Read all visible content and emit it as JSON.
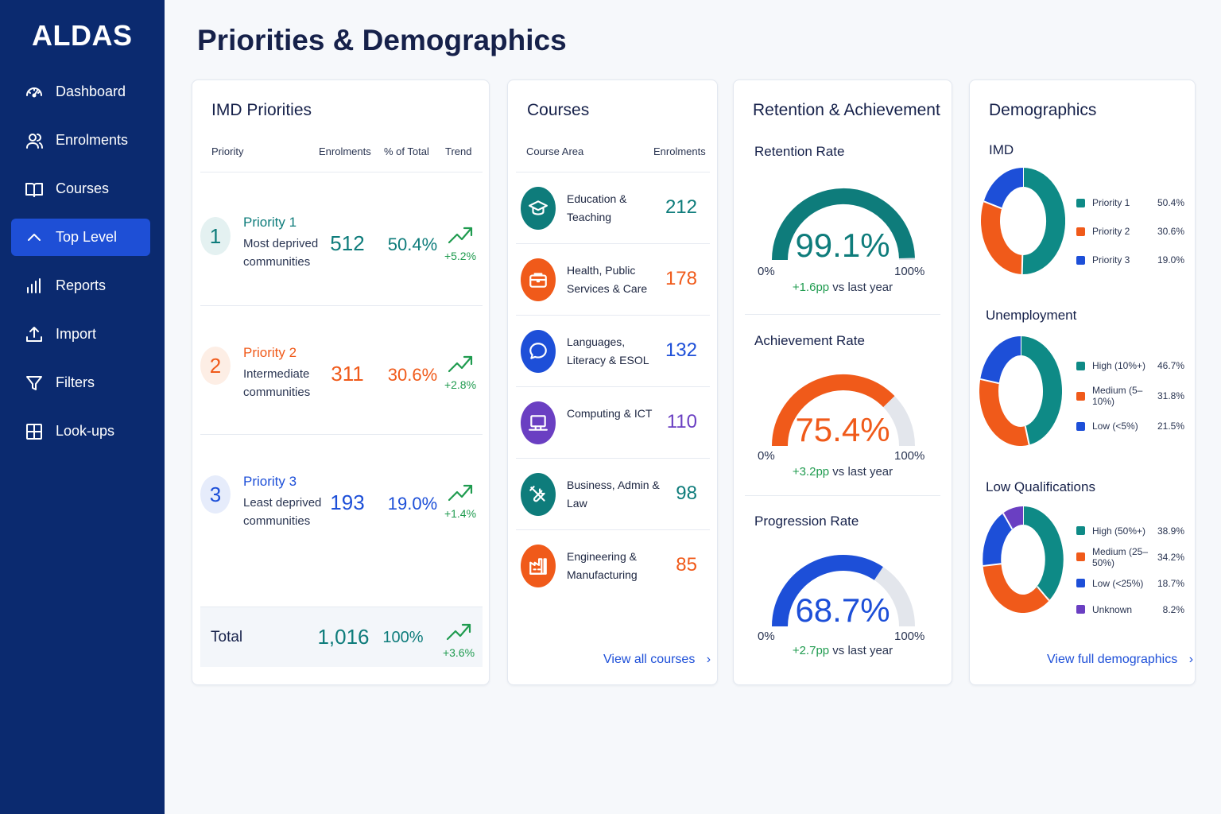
{
  "app": {
    "brand": "ALDAS",
    "page_title": "Priorities & Demographics"
  },
  "sidebar": {
    "items": [
      {
        "label": "Dashboard",
        "icon": "gauge-icon"
      },
      {
        "label": "Enrolments",
        "icon": "users-icon"
      },
      {
        "label": "Courses",
        "icon": "book-icon"
      },
      {
        "label": "Top Level",
        "icon": "chevron-up-icon",
        "active": true
      },
      {
        "label": "Reports",
        "icon": "bar-chart-icon"
      },
      {
        "label": "Import",
        "icon": "upload-icon"
      },
      {
        "label": "Filters",
        "icon": "filter-icon"
      },
      {
        "label": "Look-ups",
        "icon": "grid-icon"
      }
    ]
  },
  "imd": {
    "title": "IMD Priorities",
    "headers": {
      "priority": "Priority",
      "enrolments": "Enrolments",
      "pct": "% of Total",
      "trend": "Trend"
    },
    "rows": [
      {
        "num": "1",
        "name": "Priority 1",
        "desc": "Most deprived communities",
        "enrolments": "512",
        "pct": "50.4%",
        "trend": "+5.2%",
        "color": "#0e7c7b"
      },
      {
        "num": "2",
        "name": "Priority 2",
        "desc": "Intermediate communities",
        "enrolments": "311",
        "pct": "30.6%",
        "trend": "+2.8%",
        "color": "#f05a1a"
      },
      {
        "num": "3",
        "name": "Priority 3",
        "desc": "Least deprived communities",
        "enrolments": "193",
        "pct": "19.0%",
        "trend": "+1.4%",
        "color": "#1d4fd8"
      }
    ],
    "total": {
      "label": "Total",
      "enrolments": "1,016",
      "pct": "100%",
      "trend": "+3.6%"
    }
  },
  "courses": {
    "title": "Courses",
    "headers": {
      "area": "Course Area",
      "enrolments": "Enrolments"
    },
    "rows": [
      {
        "name": "Education & Teaching",
        "value": "212",
        "color": "#0e7c7b",
        "icon": "graduation-cap-icon"
      },
      {
        "name": "Health, Public Services & Care",
        "value": "178",
        "color": "#f05a1a",
        "icon": "briefcase-icon"
      },
      {
        "name": "Languages, Literacy & ESOL",
        "value": "132",
        "color": "#1d4fd8",
        "icon": "speech-bubble-icon"
      },
      {
        "name": "Computing & ICT",
        "value": "110",
        "color": "#6a3fc2",
        "icon": "computer-icon"
      },
      {
        "name": "Business, Admin & Law",
        "value": "98",
        "color": "#0e7c7b",
        "icon": "tools-icon"
      },
      {
        "name": "Engineering & Manufacturing",
        "value": "85",
        "color": "#f05a1a",
        "icon": "factory-icon"
      }
    ],
    "link": "View all courses"
  },
  "retention": {
    "title": "Retention & Achievement",
    "gauges": [
      {
        "title": "Retention Rate",
        "value": "99.1%",
        "fraction": 0.991,
        "min": "0%",
        "max": "100%",
        "delta": "+1.6pp",
        "suffix": " vs last year",
        "color": "#0e7c7b"
      },
      {
        "title": "Achievement Rate",
        "value": "75.4%",
        "fraction": 0.754,
        "min": "0%",
        "max": "100%",
        "delta": "+3.2pp",
        "suffix": " vs last year",
        "color": "#f05a1a"
      },
      {
        "title": "Progression Rate",
        "value": "68.7%",
        "fraction": 0.687,
        "min": "0%",
        "max": "100%",
        "delta": "+2.7pp",
        "suffix": " vs last year",
        "color": "#1d4fd8"
      }
    ]
  },
  "demographics": {
    "title": "Demographics",
    "groups": [
      {
        "title": "IMD",
        "items": [
          {
            "label": "Priority 1",
            "value": "50.4%",
            "pct": 50.4,
            "color": "#0e8a86"
          },
          {
            "label": "Priority 2",
            "value": "30.6%",
            "pct": 30.6,
            "color": "#f05a1a"
          },
          {
            "label": "Priority 3",
            "value": "19.0%",
            "pct": 19.0,
            "color": "#1d4fd8"
          }
        ]
      },
      {
        "title": "Unemployment",
        "items": [
          {
            "label": "High (10%+)",
            "value": "46.7%",
            "pct": 46.7,
            "color": "#0e8a86"
          },
          {
            "label": "Medium (5–10%)",
            "value": "31.8%",
            "pct": 31.8,
            "color": "#f05a1a"
          },
          {
            "label": "Low (<5%)",
            "value": "21.5%",
            "pct": 21.5,
            "color": "#1d4fd8"
          }
        ]
      },
      {
        "title": "Low Qualifications",
        "items": [
          {
            "label": "High (50%+)",
            "value": "38.9%",
            "pct": 38.9,
            "color": "#0e8a86"
          },
          {
            "label": "Medium (25–50%)",
            "value": "34.2%",
            "pct": 34.2,
            "color": "#f05a1a"
          },
          {
            "label": "Low (<25%)",
            "value": "18.7%",
            "pct": 18.7,
            "color": "#1d4fd8"
          },
          {
            "label": "Unknown",
            "value": "8.2%",
            "pct": 8.2,
            "color": "#6a3fc2"
          }
        ]
      }
    ],
    "link": "View full demographics"
  }
}
